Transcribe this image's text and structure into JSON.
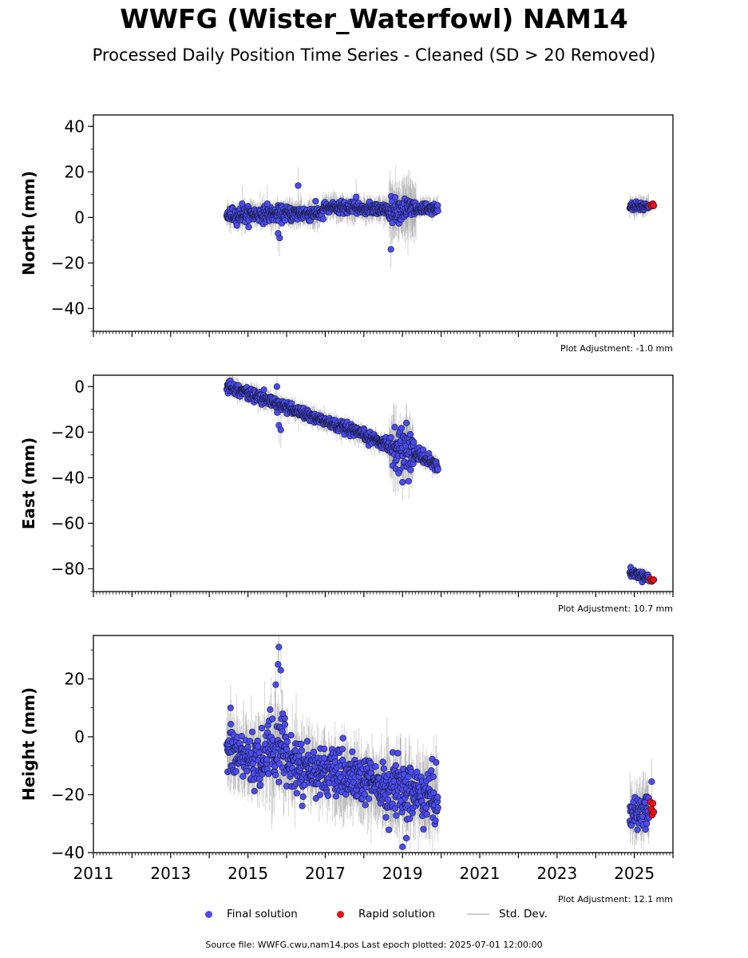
{
  "title": "WWFG (Wister_Waterfowl) NAM14",
  "subtitle": "Processed Daily Position Time Series - Cleaned (SD > 20 Removed)",
  "colors": {
    "final": "#4a4cf0",
    "rapid": "#e8101a",
    "std": "#c8c8c8",
    "edge": "#1a1a3a"
  },
  "legend": {
    "final": "Final solution",
    "rapid": "Rapid solution",
    "std": "Std. Dev."
  },
  "footer": "Source file: WWFG.cwu.nam14.pos  Last epoch plotted: 2025-07-01 12:00:00",
  "chart_data": [
    {
      "type": "scatter",
      "ylabel": "North (mm)",
      "xlim": [
        2011,
        2026
      ],
      "ylim": [
        -50,
        45
      ],
      "yticks": [
        -40,
        -20,
        0,
        20,
        40
      ],
      "xticks": [
        2011,
        2013,
        2015,
        2017,
        2019,
        2021,
        2023,
        2025
      ],
      "show_xtick_labels": false,
      "adjustment": "Plot Adjustment: -1.0 mm",
      "segments": [
        {
          "x0": 2014.45,
          "x1": 2016.95,
          "y0": 1.0,
          "y1": 2.0,
          "noise": 1.6,
          "sd": 4
        },
        {
          "x0": 2016.95,
          "x1": 2018.65,
          "y0": 4.5,
          "y1": 3.5,
          "noise": 1.2,
          "sd": 4
        },
        {
          "x0": 2018.65,
          "x1": 2019.35,
          "y0": 3.5,
          "y1": 4.0,
          "noise": 2.4,
          "sd": 9
        },
        {
          "x0": 2019.35,
          "x1": 2019.92,
          "y0": 4.0,
          "y1": 4.0,
          "noise": 1.2,
          "sd": 3
        },
        {
          "x0": 2024.88,
          "x1": 2025.38,
          "y0": 4.5,
          "y1": 5.0,
          "noise": 1.0,
          "sd": 3
        }
      ],
      "outliers": [
        [
          2016.3,
          14
        ],
        [
          2015.82,
          -9
        ],
        [
          2015.78,
          -7
        ],
        [
          2017.8,
          9
        ],
        [
          2018.7,
          -14
        ],
        [
          2015.5,
          6
        ],
        [
          2014.85,
          6
        ]
      ],
      "rapid": [
        [
          2025.42,
          5.5
        ],
        [
          2025.45,
          5.0
        ],
        [
          2025.48,
          6.0
        ],
        [
          2025.5,
          5.2
        ]
      ]
    },
    {
      "type": "scatter",
      "ylabel": "East (mm)",
      "xlim": [
        2011,
        2026
      ],
      "ylim": [
        -90,
        5
      ],
      "yticks": [
        -80,
        -60,
        -40,
        -20,
        0
      ],
      "xticks": [
        2011,
        2013,
        2015,
        2017,
        2019,
        2021,
        2023,
        2025
      ],
      "show_xtick_labels": false,
      "adjustment": "Plot Adjustment: 10.7 mm",
      "segments": [
        {
          "x0": 2014.45,
          "x1": 2018.65,
          "y0": 0.5,
          "y1": -25.5,
          "noise": 1.2,
          "sd": 3
        },
        {
          "x0": 2018.65,
          "x1": 2019.3,
          "y0": -25.5,
          "y1": -29.0,
          "noise": 4.0,
          "sd": 10
        },
        {
          "x0": 2019.3,
          "x1": 2019.92,
          "y0": -29.0,
          "y1": -34.5,
          "noise": 1.2,
          "sd": 3
        },
        {
          "x0": 2024.88,
          "x1": 2025.38,
          "y0": -81.5,
          "y1": -84.0,
          "noise": 0.8,
          "sd": 2
        }
      ],
      "outliers": [
        [
          2015.75,
          0
        ],
        [
          2015.8,
          -17
        ],
        [
          2015.85,
          -19
        ],
        [
          2019.1,
          -16
        ],
        [
          2019.0,
          -42
        ],
        [
          2018.9,
          -38
        ]
      ],
      "rapid": [
        [
          2025.42,
          -84.5
        ],
        [
          2025.45,
          -85.5
        ],
        [
          2025.48,
          -85.0
        ],
        [
          2025.5,
          -84.8
        ]
      ]
    },
    {
      "type": "scatter",
      "ylabel": "Height (mm)",
      "xlim": [
        2011,
        2026
      ],
      "ylim": [
        -40,
        35
      ],
      "yticks": [
        -40,
        -20,
        0,
        20
      ],
      "xticks": [
        2011,
        2013,
        2015,
        2017,
        2019,
        2021,
        2023,
        2025
      ],
      "show_xtick_labels": true,
      "adjustment": "Plot Adjustment: 12.1 mm",
      "segments": [
        {
          "x0": 2014.45,
          "x1": 2015.4,
          "y0": -5,
          "y1": -9,
          "noise": 4.5,
          "sd": 8
        },
        {
          "x0": 2015.4,
          "x1": 2016.0,
          "y0": -4,
          "y1": -4,
          "noise": 5.5,
          "sd": 10
        },
        {
          "x0": 2016.0,
          "x1": 2018.5,
          "y0": -9,
          "y1": -17,
          "noise": 4.0,
          "sd": 8
        },
        {
          "x0": 2018.5,
          "x1": 2019.92,
          "y0": -17,
          "y1": -21,
          "noise": 5.0,
          "sd": 9
        },
        {
          "x0": 2024.88,
          "x1": 2025.38,
          "y0": -26,
          "y1": -25,
          "noise": 3.0,
          "sd": 7
        }
      ],
      "outliers": [
        [
          2015.8,
          31
        ],
        [
          2015.78,
          25
        ],
        [
          2015.85,
          23
        ],
        [
          2015.72,
          18
        ],
        [
          2015.9,
          8
        ],
        [
          2014.55,
          10
        ],
        [
          2019.0,
          -38
        ],
        [
          2019.1,
          -35
        ],
        [
          2025.45,
          -15.5
        ]
      ],
      "rapid": [
        [
          2025.42,
          -22.5
        ],
        [
          2025.44,
          -25
        ],
        [
          2025.46,
          -27
        ],
        [
          2025.48,
          -23
        ],
        [
          2025.5,
          -26
        ]
      ]
    }
  ]
}
